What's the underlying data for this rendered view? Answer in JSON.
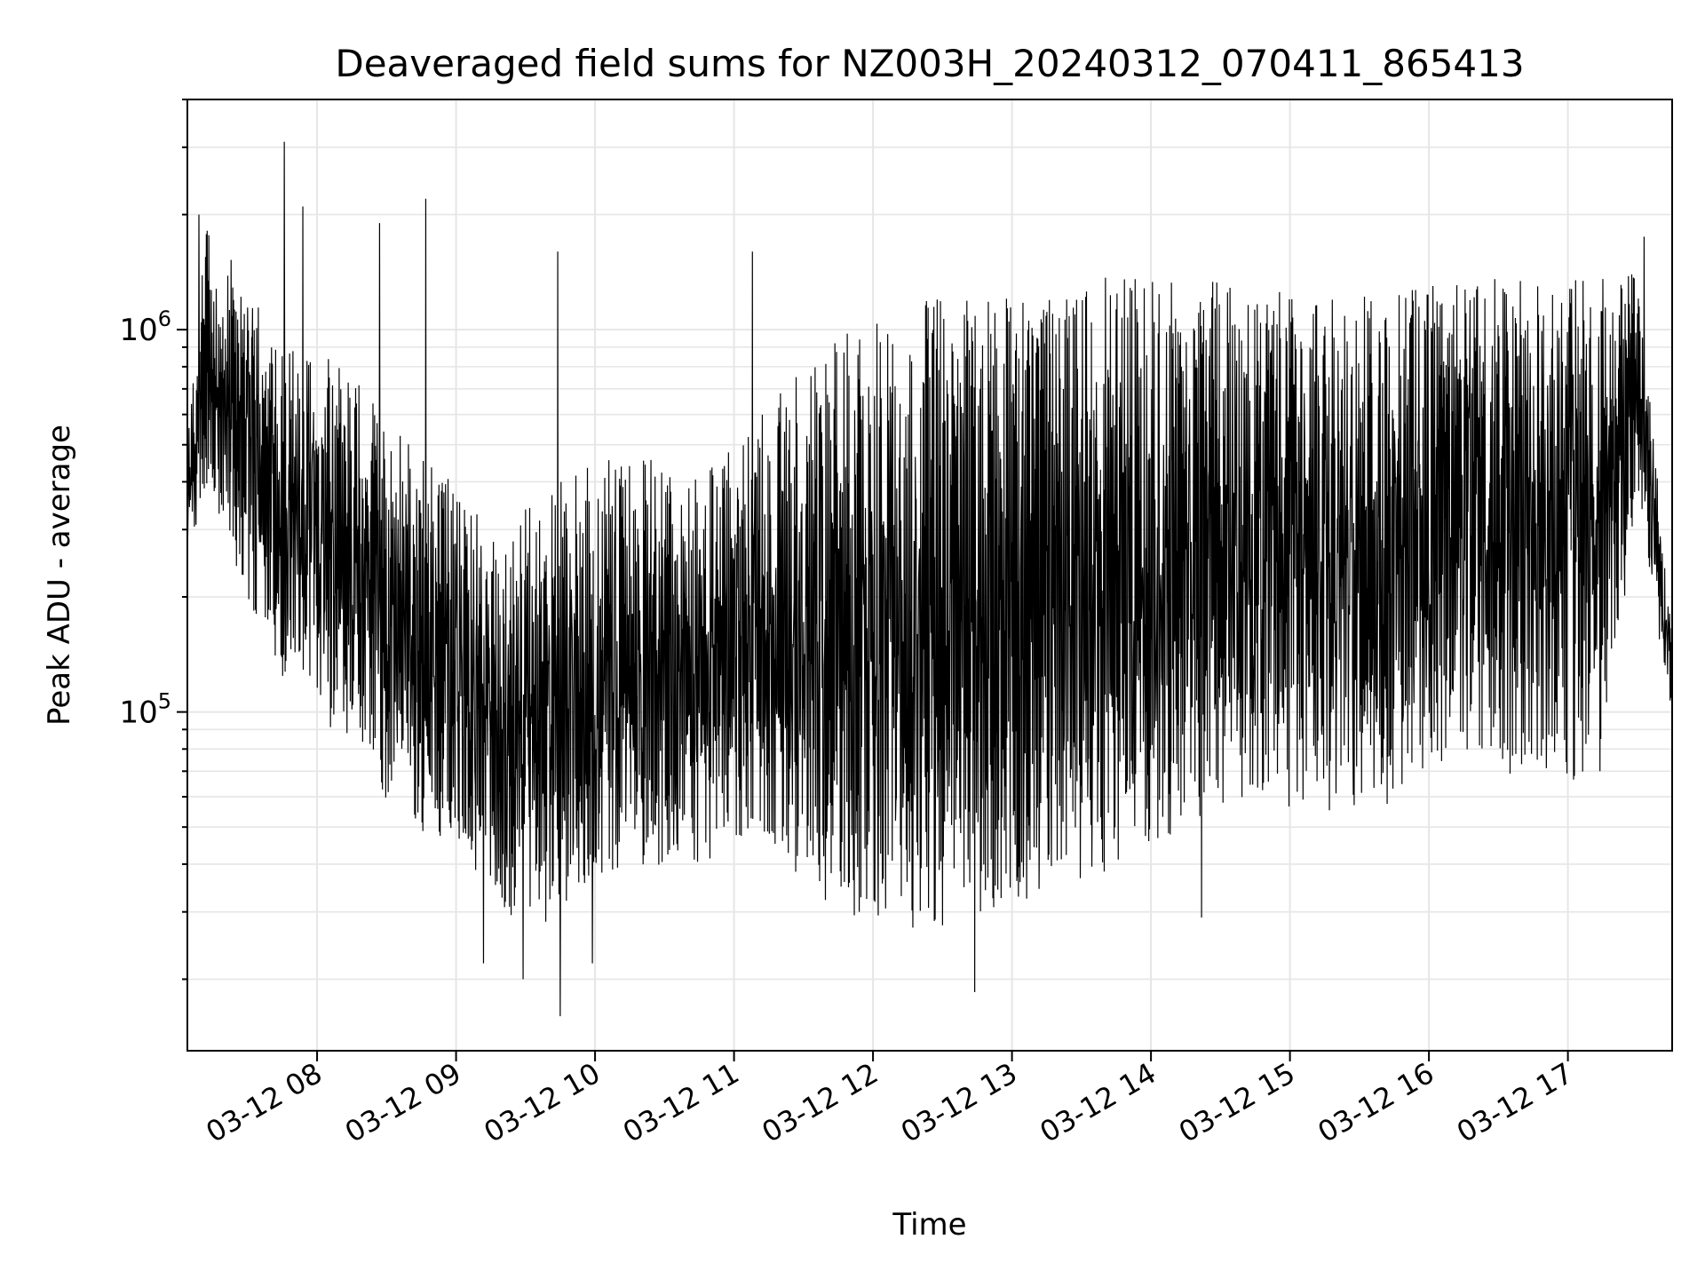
{
  "chart_data": {
    "type": "line",
    "title": "Deaveraged field sums for NZ003H_20240312_070411_865413",
    "xlabel": "Time",
    "ylabel": "Peak ADU - average",
    "y_scale": "log",
    "ylim": [
      13000,
      4000000
    ],
    "xlim": [
      "2024-03-12 07:04",
      "2024-03-12 17:45"
    ],
    "grid": true,
    "color": "#000000",
    "x_ticks": [
      {
        "value": "2024-03-12 08:00",
        "label": "03-12 08"
      },
      {
        "value": "2024-03-12 09:00",
        "label": "03-12 09"
      },
      {
        "value": "2024-03-12 10:00",
        "label": "03-12 10"
      },
      {
        "value": "2024-03-12 11:00",
        "label": "03-12 11"
      },
      {
        "value": "2024-03-12 12:00",
        "label": "03-12 12"
      },
      {
        "value": "2024-03-12 13:00",
        "label": "03-12 13"
      },
      {
        "value": "2024-03-12 14:00",
        "label": "03-12 14"
      },
      {
        "value": "2024-03-12 15:00",
        "label": "03-12 15"
      },
      {
        "value": "2024-03-12 16:00",
        "label": "03-12 16"
      },
      {
        "value": "2024-03-12 17:00",
        "label": "03-12 17"
      }
    ],
    "y_ticks": [
      {
        "value": 100000,
        "base": "10",
        "exp": "5"
      },
      {
        "value": 1000000,
        "base": "10",
        "exp": "6"
      }
    ],
    "envelope": [
      {
        "t": "2024-03-12 07:04",
        "low": 230000,
        "high": 500000
      },
      {
        "t": "2024-03-12 07:12",
        "low": 400000,
        "high": 2000000
      },
      {
        "t": "2024-03-12 07:30",
        "low": 200000,
        "high": 1300000
      },
      {
        "t": "2024-03-12 07:45",
        "low": 120000,
        "high": 900000
      },
      {
        "t": "2024-03-12 08:00",
        "low": 100000,
        "high": 900000
      },
      {
        "t": "2024-03-12 08:20",
        "low": 70000,
        "high": 700000
      },
      {
        "t": "2024-03-12 08:40",
        "low": 50000,
        "high": 500000
      },
      {
        "t": "2024-03-12 09:00",
        "low": 45000,
        "high": 400000
      },
      {
        "t": "2024-03-12 09:20",
        "low": 30000,
        "high": 300000
      },
      {
        "t": "2024-03-12 09:40",
        "low": 27000,
        "high": 400000
      },
      {
        "t": "2024-03-12 10:00",
        "low": 35000,
        "high": 450000
      },
      {
        "t": "2024-03-12 10:20",
        "low": 40000,
        "high": 500000
      },
      {
        "t": "2024-03-12 10:40",
        "low": 38000,
        "high": 400000
      },
      {
        "t": "2024-03-12 11:00",
        "low": 45000,
        "high": 500000
      },
      {
        "t": "2024-03-12 11:20",
        "low": 42000,
        "high": 700000
      },
      {
        "t": "2024-03-12 11:40",
        "low": 30000,
        "high": 900000
      },
      {
        "t": "2024-03-12 12:00",
        "low": 28000,
        "high": 1100000
      },
      {
        "t": "2024-03-12 12:20",
        "low": 27000,
        "high": 1200000
      },
      {
        "t": "2024-03-12 12:40",
        "low": 28000,
        "high": 1250000
      },
      {
        "t": "2024-03-12 13:00",
        "low": 30000,
        "high": 1200000
      },
      {
        "t": "2024-03-12 13:20",
        "low": 32000,
        "high": 1250000
      },
      {
        "t": "2024-03-12 13:40",
        "low": 38000,
        "high": 1400000
      },
      {
        "t": "2024-03-12 14:00",
        "low": 45000,
        "high": 1350000
      },
      {
        "t": "2024-03-12 14:20",
        "low": 50000,
        "high": 1350000
      },
      {
        "t": "2024-03-12 14:40",
        "low": 60000,
        "high": 1300000
      },
      {
        "t": "2024-03-12 15:00",
        "low": 55000,
        "high": 1250000
      },
      {
        "t": "2024-03-12 15:20",
        "low": 55000,
        "high": 1200000
      },
      {
        "t": "2024-03-12 15:40",
        "low": 55000,
        "high": 1250000
      },
      {
        "t": "2024-03-12 16:00",
        "low": 70000,
        "high": 1300000
      },
      {
        "t": "2024-03-12 16:20",
        "low": 80000,
        "high": 1400000
      },
      {
        "t": "2024-03-12 16:40",
        "low": 65000,
        "high": 1350000
      },
      {
        "t": "2024-03-12 17:00",
        "low": 65000,
        "high": 1350000
      },
      {
        "t": "2024-03-12 17:15",
        "low": 70000,
        "high": 1400000
      },
      {
        "t": "2024-03-12 17:30",
        "low": 350000,
        "high": 1500000
      },
      {
        "t": "2024-03-12 17:36",
        "low": 200000,
        "high": 600000
      },
      {
        "t": "2024-03-12 17:45",
        "low": 100000,
        "high": 160000
      }
    ],
    "spikes": [
      {
        "t": "2024-03-12 07:09",
        "value": 2000000
      },
      {
        "t": "2024-03-12 07:46",
        "value": 3100000
      },
      {
        "t": "2024-03-12 07:54",
        "value": 2100000
      },
      {
        "t": "2024-03-12 08:27",
        "value": 1900000
      },
      {
        "t": "2024-03-12 08:47",
        "value": 2200000
      },
      {
        "t": "2024-03-12 09:44",
        "value": 1600000
      },
      {
        "t": "2024-03-12 11:08",
        "value": 1600000
      },
      {
        "t": "2024-03-12 17:33",
        "value": 1750000
      },
      {
        "t": "2024-03-12 09:45",
        "value": 16000
      },
      {
        "t": "2024-03-12 12:44",
        "value": 18500
      },
      {
        "t": "2024-03-12 09:12",
        "value": 22000
      },
      {
        "t": "2024-03-12 09:29",
        "value": 20000
      },
      {
        "t": "2024-03-12 09:59",
        "value": 22000
      },
      {
        "t": "2024-03-12 14:22",
        "value": 29000
      }
    ]
  }
}
